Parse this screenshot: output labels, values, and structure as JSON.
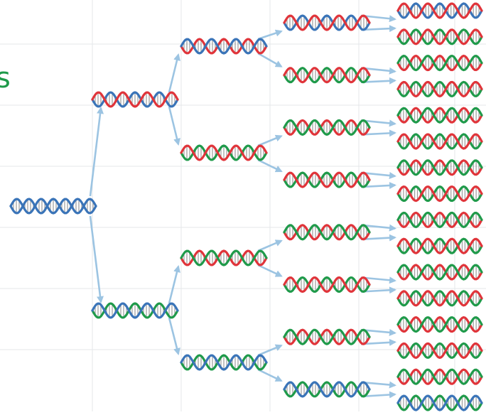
{
  "edge_text": "s",
  "colors": {
    "original_strand": "#3a74b8",
    "new_strand_red": "#e0343a",
    "new_strand_green": "#1f9a4a",
    "rung": "#4a4a4a",
    "arrow": "#9cc4e2",
    "grid": "#e4e7ea",
    "edge_text": "#1f9a4a"
  },
  "generations": [
    {
      "name": "generation-0",
      "helices": [
        [
          "B",
          "B"
        ]
      ]
    },
    {
      "name": "generation-1",
      "helices": [
        [
          "B",
          "R"
        ],
        [
          "G",
          "B"
        ]
      ]
    },
    {
      "name": "generation-2",
      "helices": [
        [
          "R",
          "B"
        ],
        [
          "G",
          "R"
        ],
        [
          "R",
          "G"
        ],
        [
          "G",
          "B"
        ]
      ]
    },
    {
      "name": "generation-3",
      "helices": [
        [
          "B",
          "R"
        ],
        [
          "G",
          "R"
        ],
        [
          "R",
          "G"
        ],
        [
          "G",
          "R"
        ],
        [
          "R",
          "G"
        ],
        [
          "G",
          "R"
        ],
        [
          "R",
          "G"
        ],
        [
          "G",
          "B"
        ]
      ]
    },
    {
      "name": "generation-4",
      "helices": [
        [
          "B",
          "R"
        ],
        [
          "G",
          "R"
        ],
        [
          "R",
          "G"
        ],
        [
          "G",
          "R"
        ],
        [
          "R",
          "G"
        ],
        [
          "G",
          "R"
        ],
        [
          "R",
          "G"
        ],
        [
          "G",
          "R"
        ],
        [
          "R",
          "G"
        ],
        [
          "G",
          "R"
        ],
        [
          "R",
          "G"
        ],
        [
          "G",
          "R"
        ],
        [
          "R",
          "G"
        ],
        [
          "G",
          "R"
        ],
        [
          "R",
          "G"
        ],
        [
          "G",
          "B"
        ]
      ]
    }
  ],
  "icons": [
    "dna-helix-icon",
    "arrow-icon"
  ]
}
